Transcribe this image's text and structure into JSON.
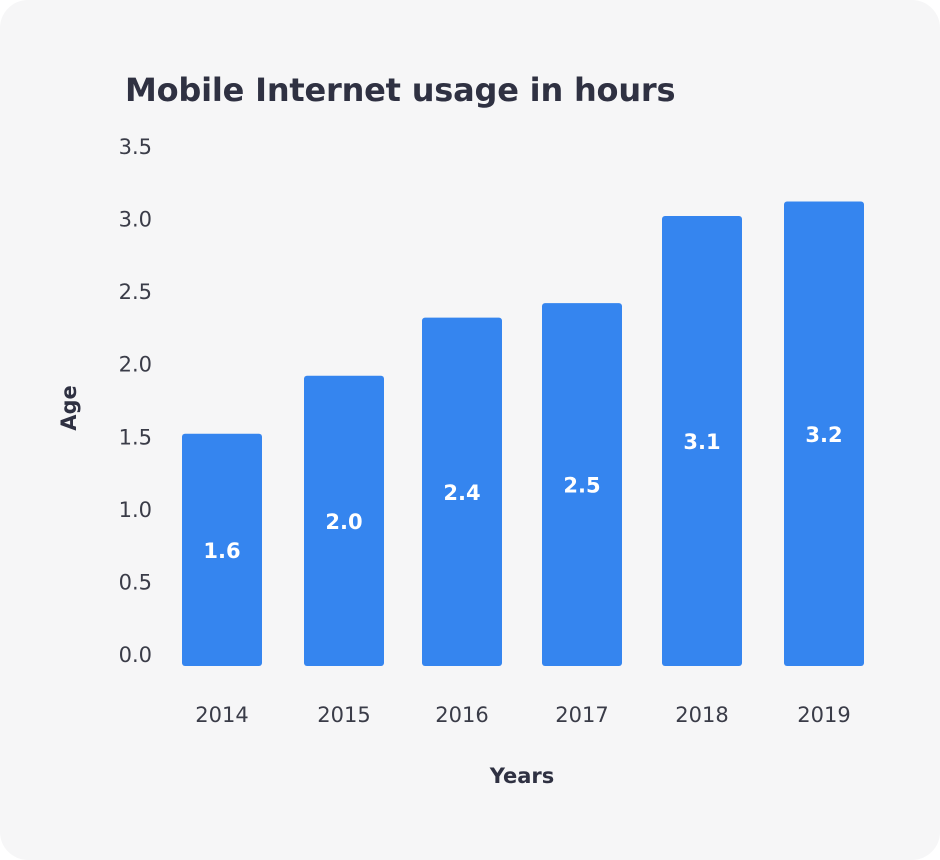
{
  "chart_data": {
    "type": "bar",
    "title": "Mobile Internet usage in hours",
    "xlabel": "Years",
    "ylabel": "Age",
    "categories": [
      "2014",
      "2015",
      "2016",
      "2017",
      "2018",
      "2019"
    ],
    "values": [
      1.6,
      2.0,
      2.4,
      2.5,
      3.1,
      3.2
    ],
    "value_labels": [
      "1.6",
      "2.0",
      "2.4",
      "2.5",
      "3.1",
      "3.2"
    ],
    "y_ticks": [
      "0.0",
      "0.5",
      "1.0",
      "1.5",
      "2.0",
      "2.5",
      "3.0",
      "3.5"
    ],
    "ylim": [
      0,
      3.5
    ],
    "grid": false,
    "legend": "none",
    "bar_color": "#3585ef",
    "background": "#f6f6f7"
  }
}
